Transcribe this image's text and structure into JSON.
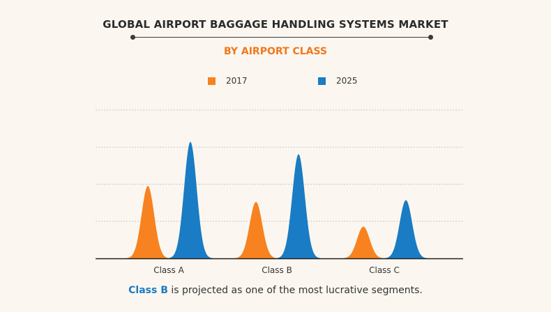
{
  "header": {
    "title": "GLOBAL AIRPORT BAGGAGE HANDLING SYSTEMS MARKET",
    "subtitle": "BY AIRPORT CLASS"
  },
  "footnote": {
    "highlight": "Class B",
    "rest": " is projected as one of the most lucrative segments."
  },
  "colors": {
    "series_2017": "#f7821f",
    "series_2025": "#1a7cc4",
    "grid": "#c9c6c0",
    "axis": "#222222",
    "title_accent": "#f0781e"
  },
  "chart_data": {
    "type": "area",
    "title": "GLOBAL AIRPORT BAGGAGE HANDLING SYSTEMS MARKET",
    "subtitle": "BY AIRPORT CLASS",
    "categories": [
      "Class A",
      "Class B",
      "Class C"
    ],
    "series": [
      {
        "name": "2017",
        "values": [
          41,
          32,
          18
        ]
      },
      {
        "name": "2025",
        "values": [
          66,
          59,
          33
        ]
      }
    ],
    "ylim": [
      0,
      84
    ],
    "grid": true,
    "legend_position": "top-center"
  }
}
